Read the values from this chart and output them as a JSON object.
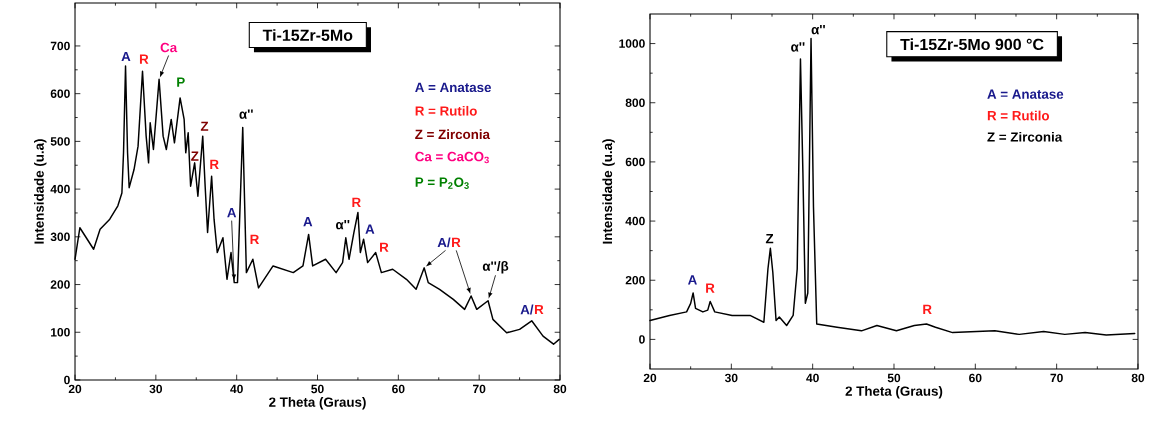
{
  "chart_data": [
    {
      "type": "line",
      "title": "Ti-15Zr-5Mo",
      "xlabel": "2 Theta (Graus)",
      "ylabel": "Intensidade (u.a)",
      "xlim": [
        20,
        80
      ],
      "ylim": [
        0,
        790
      ],
      "xticks": [
        20,
        30,
        40,
        50,
        60,
        70,
        80
      ],
      "yticks": [
        0,
        100,
        200,
        300,
        400,
        500,
        600,
        700
      ],
      "series": [
        {
          "color": "#000000",
          "x": [
            20,
            20.6,
            22.3,
            23.1,
            24.3,
            25.3,
            25.8,
            26.0,
            26.25,
            26.5,
            26.7,
            27.3,
            27.8,
            28.35,
            28.8,
            29.1,
            29.3,
            29.7,
            30.4,
            30.9,
            31.3,
            31.9,
            32.3,
            33.0,
            33.5,
            33.7,
            34.0,
            34.3,
            34.8,
            35.2,
            35.8,
            36.1,
            36.4,
            36.9,
            37.2,
            37.6,
            38.3,
            38.8,
            39.3,
            39.7,
            40.1,
            40.75,
            41.2,
            42.0,
            42.7,
            44.5,
            47.0,
            48.2,
            48.9,
            49.4,
            51.0,
            52.3,
            53.1,
            53.5,
            53.9,
            54.5,
            55.0,
            55.3,
            55.7,
            56.2,
            57.2,
            57.9,
            59.3,
            61.0,
            62.2,
            63.2,
            63.7,
            65.1,
            66.8,
            68.2,
            69.0,
            69.7,
            71.1,
            71.7,
            73.4,
            75.0,
            76.5,
            77.9,
            79.2,
            79.9
          ],
          "values": [
            253,
            319,
            274,
            316,
            337,
            365,
            392,
            476,
            658,
            476,
            403,
            441,
            490,
            647,
            511,
            455,
            539,
            483,
            630,
            511,
            483,
            546,
            497,
            591,
            546,
            476,
            518,
            406,
            455,
            385,
            511,
            406,
            309,
            427,
            337,
            267,
            298,
            211,
            267,
            204,
            204,
            529,
            225,
            253,
            193,
            239,
            225,
            239,
            305,
            239,
            253,
            225,
            246,
            298,
            253,
            309,
            351,
            267,
            295,
            246,
            267,
            225,
            232,
            211,
            190,
            235,
            204,
            190,
            169,
            148,
            176,
            148,
            166,
            127,
            99,
            106,
            124,
            92,
            75,
            85
          ]
        }
      ],
      "annotations": [
        "A",
        "R",
        {
          "text": "Ca",
          "x": 30.4,
          "y": 630
        },
        "P",
        "Z",
        "Z",
        "R",
        "α''",
        {
          "text": "A",
          "x": 39.7,
          "y": 204
        },
        "R",
        "A",
        "R",
        "α''",
        "A",
        "R",
        {
          "text": "A/",
          "x": 63.2,
          "y": 235
        },
        {
          "text": "R",
          "x": 69.0,
          "y": 176
        },
        {
          "text": "α''/β",
          "x": 71.1,
          "y": 166
        },
        "A/",
        "R",
        "A = Anatase",
        "R = Rutilo",
        "Z =  Zirconia",
        "Ca = CaCO$_{3}$",
        "P = P$_{2}$O$_{3}$"
      ]
    },
    {
      "type": "line",
      "title": "Ti-15Zr-5Mo 900 °C",
      "xlabel": "2 Theta (Graus)",
      "ylabel": "Intensidade (u.a)",
      "xlim": [
        20,
        80
      ],
      "ylim": [
        -100,
        1100
      ],
      "xticks": [
        20,
        30,
        40,
        50,
        60,
        70,
        80
      ],
      "yticks": [
        0,
        200,
        400,
        600,
        800,
        1000
      ],
      "series": [
        {
          "color": "#000000",
          "x": [
            20,
            22.4,
            24.5,
            25.0,
            25.3,
            25.6,
            26.5,
            27.1,
            27.4,
            27.96,
            30.1,
            32.3,
            34.0,
            34.5,
            34.8,
            35.1,
            35.5,
            35.9,
            36.8,
            37.6,
            38.1,
            38.5,
            38.8,
            39.1,
            39.4,
            39.8,
            40.1,
            40.5,
            43.0,
            46.0,
            47.9,
            50.3,
            52.5,
            54.0,
            55.1,
            57.2,
            62.4,
            65.4,
            68.4,
            71.0,
            73.5,
            76.1,
            79.6
          ],
          "values": [
            64,
            81,
            93,
            122,
            157,
            105,
            93,
            99,
            128,
            93,
            81,
            81,
            58,
            238,
            308,
            227,
            64,
            76,
            47,
            81,
            238,
            948,
            564,
            122,
            157,
            1017,
            448,
            52,
            41,
            29,
            47,
            29,
            47,
            52,
            41,
            23,
            29,
            17,
            27,
            17,
            23,
            15,
            20
          ]
        }
      ],
      "annotations": [
        "A",
        "R",
        "Z",
        "α''",
        "α''",
        "R",
        "A = Anatase",
        "R = Rutilo",
        "Z =  Zirconia"
      ]
    }
  ]
}
